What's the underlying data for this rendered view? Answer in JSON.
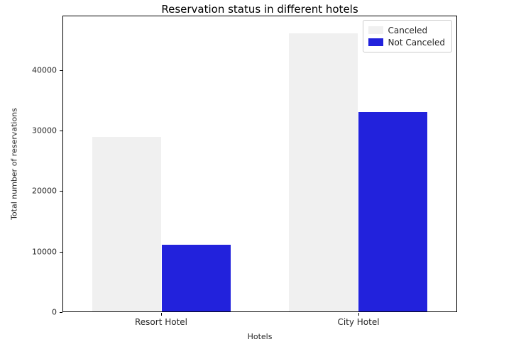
{
  "title": "Reservation status in different hotels",
  "axes": {
    "xlabel": "Hotels",
    "ylabel": "Total number of reservations"
  },
  "legend": {
    "position": "upper right",
    "items": [
      {
        "label": "Canceled",
        "color": "#f0f0f0"
      },
      {
        "label": "Not Canceled",
        "color": "#2222dc"
      }
    ]
  },
  "colors": {
    "canceled_bar": "#f0f0f0",
    "not_canceled_bar": "#2222dc",
    "axis_line": "#000000",
    "text": "#262626",
    "background": "#ffffff"
  },
  "chart_data": {
    "type": "bar",
    "categories": [
      "Resort Hotel",
      "City Hotel"
    ],
    "series": [
      {
        "name": "Canceled",
        "color": "#f0f0f0",
        "values": [
          28938,
          46228
        ]
      },
      {
        "name": "Not Canceled",
        "color": "#2222dc",
        "values": [
          11122,
          33102
        ]
      }
    ],
    "title": "Reservation status in different hotels",
    "xlabel": "Hotels",
    "ylabel": "Total number of reservations",
    "ylim": [
      0,
      49000
    ],
    "yticks": [
      0,
      10000,
      20000,
      30000,
      40000
    ],
    "legend_position": "upper right",
    "grid": false
  }
}
